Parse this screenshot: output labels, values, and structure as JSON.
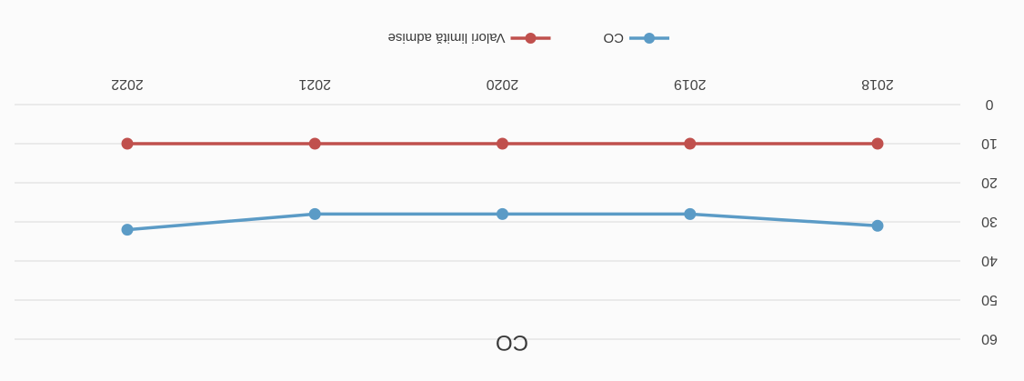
{
  "chart_data": {
    "type": "line",
    "title": "CO",
    "categories": [
      "2018",
      "2019",
      "2020",
      "2021",
      "2022"
    ],
    "series": [
      {
        "name": "CO",
        "color": "#5b9bc6",
        "values": [
          31,
          28,
          28,
          28,
          32
        ]
      },
      {
        "name": "Valori limită admise",
        "color": "#c0504d",
        "values": [
          10,
          10,
          10,
          10,
          10
        ]
      }
    ],
    "ylim": [
      0,
      60
    ],
    "yticks": [
      "0",
      "10",
      "20",
      "30",
      "40",
      "50",
      "60"
    ],
    "grid": true,
    "legend_position": "bottom",
    "rotated_180": true
  }
}
